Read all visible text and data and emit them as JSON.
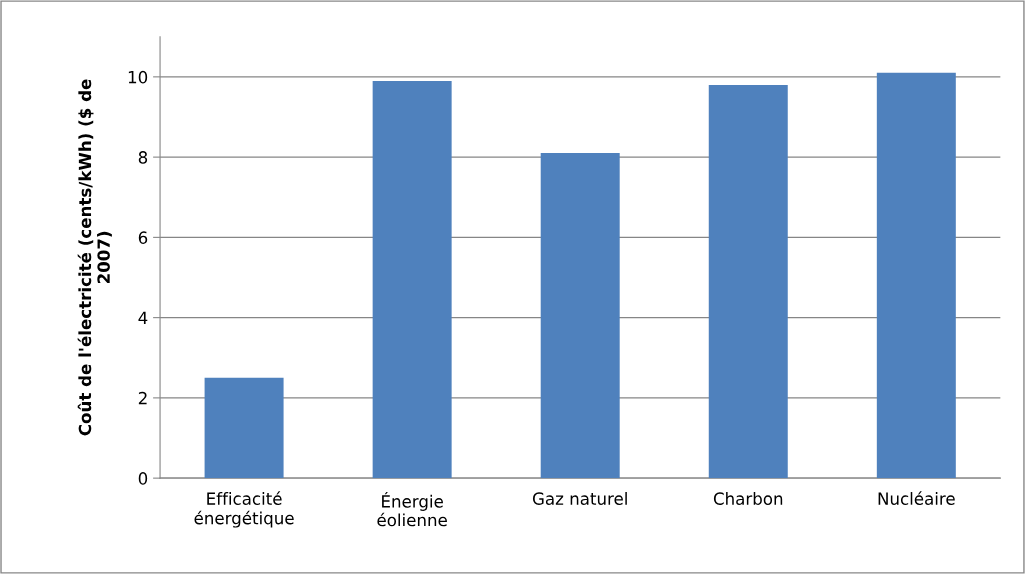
{
  "chart_data": {
    "type": "bar",
    "ylabel": "Coût de l'électricité (cents/kWh) ($ de\n2007)",
    "categories": [
      "Efficacité\nénergétique",
      "Énergie\néolienne",
      "Gaz naturel",
      "Charbon",
      "Nucléaire"
    ],
    "values": [
      2.5,
      9.9,
      8.1,
      9.8,
      10.1
    ],
    "color": "#4f81bd",
    "ylim": [
      0,
      11
    ],
    "yticks": [
      0,
      2,
      4,
      6,
      8,
      10
    ],
    "grid": "y"
  }
}
